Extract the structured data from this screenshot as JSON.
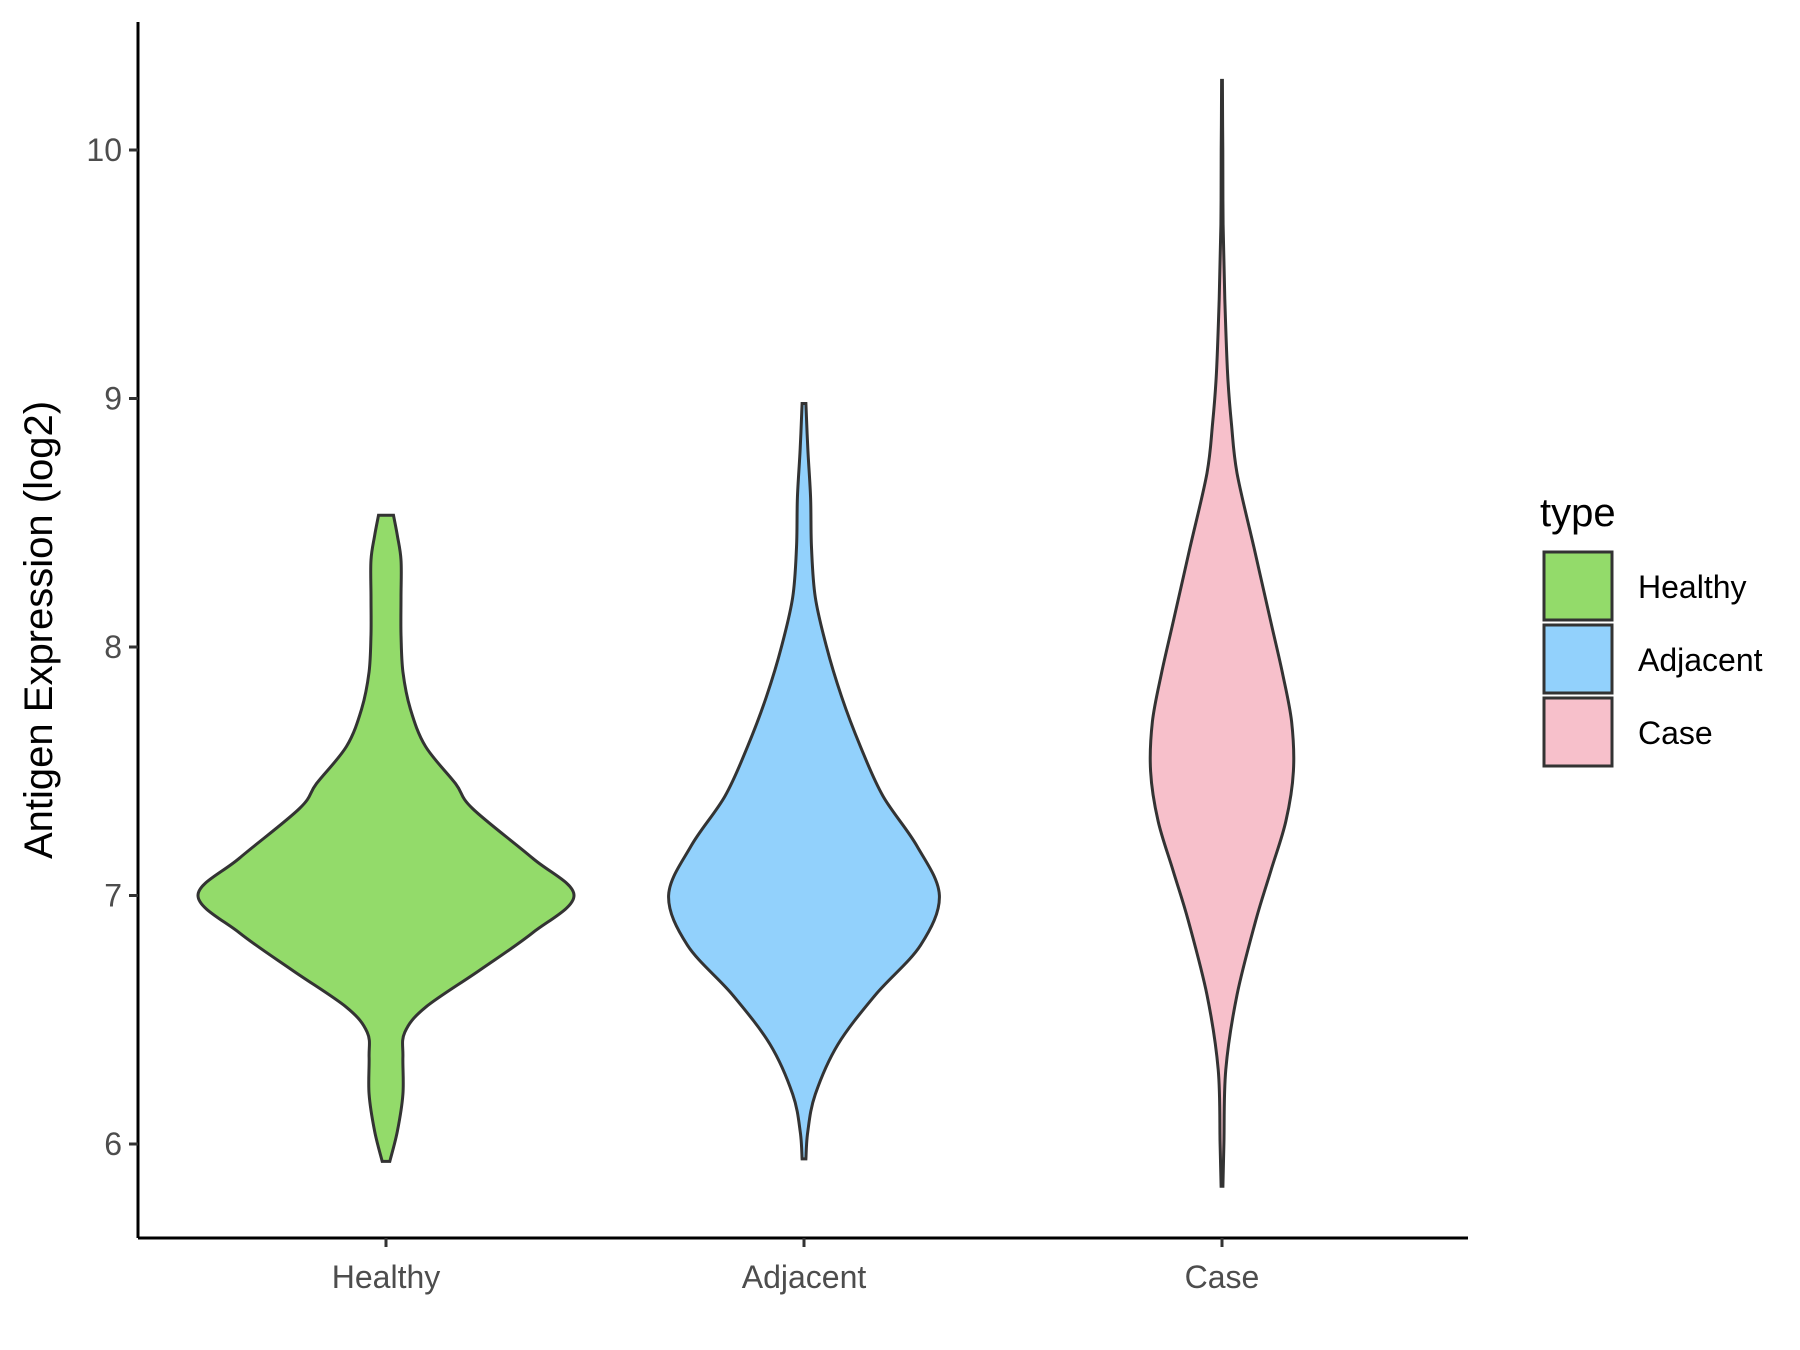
{
  "chart_data": {
    "type": "violin",
    "title": "",
    "xlabel": "",
    "ylabel": "Antigen Expression (log2)",
    "ylim": [
      5.5,
      10.5
    ],
    "y_ticks": [
      6,
      7,
      8,
      9,
      10
    ],
    "categories": [
      "Healthy",
      "Adjacent",
      "Case"
    ],
    "grid": false,
    "legend": {
      "title": "type",
      "position": "right",
      "entries": [
        "Healthy",
        "Adjacent",
        "Case"
      ]
    },
    "series": [
      {
        "name": "Healthy",
        "color": "#93DB6A",
        "min": 5.93,
        "max": 8.53,
        "density_profile": [
          [
            5.93,
            0.02
          ],
          [
            6.05,
            0.06
          ],
          [
            6.2,
            0.09
          ],
          [
            6.35,
            0.09
          ],
          [
            6.45,
            0.1
          ],
          [
            6.55,
            0.21
          ],
          [
            6.7,
            0.5
          ],
          [
            6.85,
            0.78
          ],
          [
            7.0,
            1.0
          ],
          [
            7.15,
            0.78
          ],
          [
            7.35,
            0.46
          ],
          [
            7.45,
            0.37
          ],
          [
            7.6,
            0.21
          ],
          [
            7.75,
            0.13
          ],
          [
            7.9,
            0.09
          ],
          [
            8.05,
            0.08
          ],
          [
            8.2,
            0.08
          ],
          [
            8.35,
            0.08
          ],
          [
            8.45,
            0.06
          ],
          [
            8.53,
            0.04
          ]
        ]
      },
      {
        "name": "Adjacent",
        "color": "#92D1FC",
        "min": 5.94,
        "max": 8.98,
        "density_profile": [
          [
            5.94,
            0.01
          ],
          [
            6.05,
            0.02
          ],
          [
            6.2,
            0.06
          ],
          [
            6.4,
            0.18
          ],
          [
            6.6,
            0.38
          ],
          [
            6.8,
            0.62
          ],
          [
            7.0,
            0.72
          ],
          [
            7.2,
            0.6
          ],
          [
            7.4,
            0.42
          ],
          [
            7.6,
            0.3
          ],
          [
            7.8,
            0.2
          ],
          [
            8.0,
            0.12
          ],
          [
            8.2,
            0.06
          ],
          [
            8.4,
            0.04
          ],
          [
            8.6,
            0.035
          ],
          [
            8.8,
            0.02
          ],
          [
            8.98,
            0.01
          ]
        ]
      },
      {
        "name": "Case",
        "color": "#F7C0CB",
        "min": 5.83,
        "max": 10.28,
        "density_profile": [
          [
            5.83,
            0.005
          ],
          [
            6.0,
            0.01
          ],
          [
            6.3,
            0.02
          ],
          [
            6.6,
            0.08
          ],
          [
            6.9,
            0.18
          ],
          [
            7.1,
            0.26
          ],
          [
            7.3,
            0.34
          ],
          [
            7.5,
            0.38
          ],
          [
            7.7,
            0.37
          ],
          [
            7.9,
            0.32
          ],
          [
            8.1,
            0.26
          ],
          [
            8.4,
            0.17
          ],
          [
            8.7,
            0.08
          ],
          [
            8.9,
            0.05
          ],
          [
            9.1,
            0.03
          ],
          [
            9.4,
            0.015
          ],
          [
            9.7,
            0.006
          ],
          [
            10.0,
            0.004
          ],
          [
            10.28,
            0.002
          ]
        ]
      }
    ]
  }
}
